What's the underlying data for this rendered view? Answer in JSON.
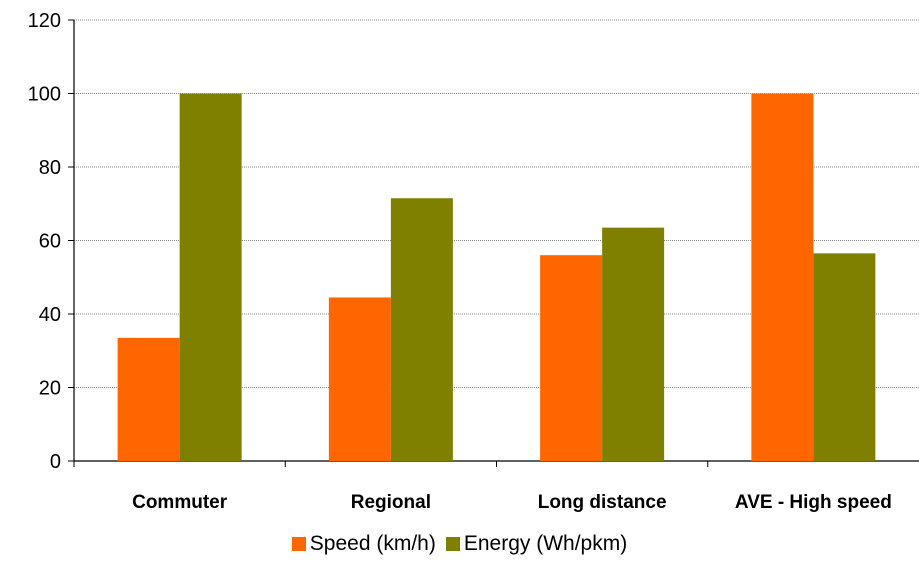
{
  "chart_data": {
    "type": "bar",
    "title": "",
    "xlabel": "",
    "ylabel": "",
    "ylim": [
      0,
      120
    ],
    "yticks": [
      0,
      20,
      40,
      60,
      80,
      100,
      120
    ],
    "grid": true,
    "legend": "bottom",
    "categories": [
      "Commuter",
      "Regional",
      "Long distance",
      "AVE - High speed"
    ],
    "series": [
      {
        "name": "Speed (km/h)",
        "color": "#FF6600",
        "values": [
          33.5,
          44.5,
          56,
          100
        ]
      },
      {
        "name": "Energy (Wh/pkm)",
        "color": "#808000",
        "values": [
          100,
          71.5,
          63.5,
          56.5
        ]
      }
    ]
  }
}
